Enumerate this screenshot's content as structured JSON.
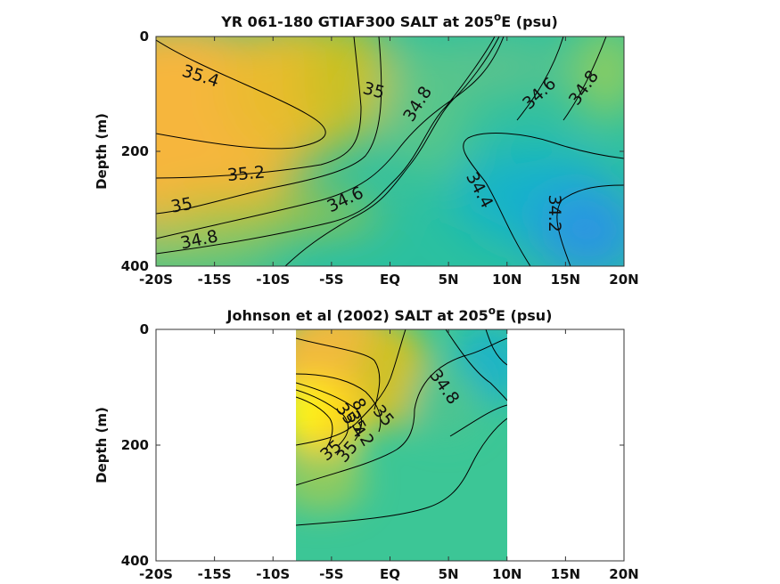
{
  "chart_data": [
    {
      "type": "heatmap",
      "title": "YR 061-180 GTIAF300 SALT at 205°E (psu)",
      "title_parts": {
        "pre": "YR 061-180 GTIAF300 SALT at 205",
        "sup": "o",
        "post": "E (psu)"
      },
      "xlabel": "",
      "ylabel": "Depth (m)",
      "x_ticks": [
        "-20S",
        "-15S",
        "-10S",
        "-5S",
        "EQ",
        "5N",
        "10N",
        "15N",
        "20N"
      ],
      "x_tick_values": [
        -20,
        -15,
        -10,
        -5,
        0,
        5,
        10,
        15,
        20
      ],
      "y_ticks": [
        "0",
        "200",
        "400"
      ],
      "y_tick_values": [
        0,
        200,
        400
      ],
      "xlim": [
        -20,
        20
      ],
      "ylim": [
        400,
        0
      ],
      "y_reversed": true,
      "grid": false,
      "colormap": "parula",
      "contour_labels": [
        {
          "text": "35.4",
          "lat": -16.2,
          "depth": 70,
          "angle": 18
        },
        {
          "text": "35",
          "lat": -1.4,
          "depth": 95,
          "angle": 15
        },
        {
          "text": "34.8",
          "lat": 2.4,
          "depth": 118,
          "angle": -58
        },
        {
          "text": "34.6",
          "lat": 12.8,
          "depth": 100,
          "angle": -42
        },
        {
          "text": "34.8",
          "lat": 16.6,
          "depth": 90,
          "angle": -55
        },
        {
          "text": "35.2",
          "lat": -12.3,
          "depth": 240,
          "angle": -5
        },
        {
          "text": "35",
          "lat": -17.8,
          "depth": 295,
          "angle": -10
        },
        {
          "text": "34.8",
          "lat": -16.3,
          "depth": 355,
          "angle": -12
        },
        {
          "text": "34.6",
          "lat": -3.8,
          "depth": 285,
          "angle": -25
        },
        {
          "text": "34.4",
          "lat": 7.6,
          "depth": 268,
          "angle": 62
        },
        {
          "text": "34.2",
          "lat": 14.0,
          "depth": 308,
          "angle": 90
        }
      ]
    },
    {
      "type": "heatmap",
      "title": "Johnson et al (2002) SALT at 205°E (psu)",
      "title_parts": {
        "pre": "Johnson et al (2002) SALT at 205",
        "sup": "o",
        "post": "E (psu)"
      },
      "xlabel": "",
      "ylabel": "Depth (m)",
      "x_ticks": [
        "-20S",
        "-15S",
        "-10S",
        "-5S",
        "EQ",
        "5N",
        "10N",
        "15N",
        "20N"
      ],
      "x_tick_values": [
        -20,
        -15,
        -10,
        -5,
        0,
        5,
        10,
        15,
        20
      ],
      "y_ticks": [
        "0",
        "200",
        "400"
      ],
      "y_tick_values": [
        0,
        200,
        400
      ],
      "xlim": [
        -20,
        20
      ],
      "ylim": [
        400,
        0
      ],
      "y_reversed": true,
      "data_extent_lat": [
        -8,
        10
      ],
      "grid": false,
      "colormap": "parula",
      "contour_labels": [
        {
          "text": "34.8",
          "lat": 4.6,
          "depth": 100,
          "angle": 55
        },
        {
          "text": "8",
          "lat": -2.7,
          "depth": 130,
          "angle": 60
        },
        {
          "text": "35.4",
          "lat": -3.4,
          "depth": 158,
          "angle": 55
        },
        {
          "text": "35.2",
          "lat": -2.6,
          "depth": 172,
          "angle": 60
        },
        {
          "text": "35",
          "lat": -0.6,
          "depth": 150,
          "angle": 50
        },
        {
          "text": "35",
          "lat": -5.0,
          "depth": 210,
          "angle": -40
        },
        {
          "text": "35",
          "lat": -3.6,
          "depth": 212,
          "angle": -50
        }
      ]
    }
  ]
}
